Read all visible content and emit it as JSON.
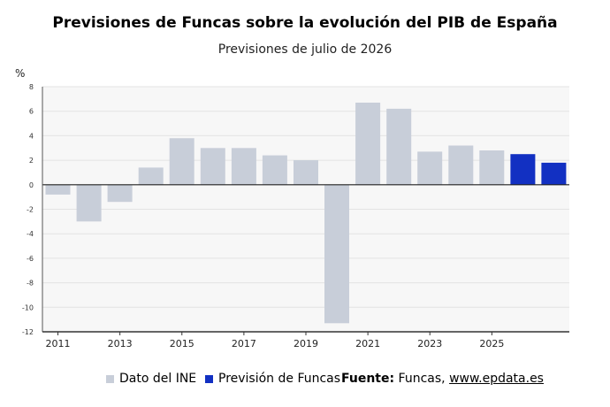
{
  "title": "Previsiones de Funcas sobre la evolución del PIB de España",
  "subtitle": "Previsiones de julio de 2026",
  "unit_label": "%",
  "legend": {
    "ine_label": "Dato del INE",
    "funcas_label": "Previsión de Funcas"
  },
  "source": {
    "prefix": "Fuente:",
    "text": " Funcas, ",
    "url": "www.epdata.es"
  },
  "colors": {
    "ine": "#c8ced9",
    "funcas": "#1230c2",
    "plot_bg": "#f7f7f7",
    "grid": "#e3e3e3"
  },
  "chart_data": {
    "type": "bar",
    "title": "Previsiones de Funcas sobre la evolución del PIB de España",
    "subtitle": "Previsiones de julio de 2026",
    "ylabel": "%",
    "ylim": [
      -12,
      8
    ],
    "yticks": [
      8,
      6,
      4,
      2,
      0,
      -2,
      -4,
      -6,
      -8,
      -10,
      -12
    ],
    "xtick_labels": [
      "2011",
      "2013",
      "2015",
      "2017",
      "2019",
      "2021",
      "2023",
      "2025"
    ],
    "categories": [
      "2011",
      "2012",
      "2013",
      "2014",
      "2015",
      "2016",
      "2017",
      "2018",
      "2019",
      "2020",
      "2021",
      "2022",
      "2023",
      "2024",
      "2025",
      "2026",
      "2027"
    ],
    "series": [
      {
        "name": "Dato del INE",
        "values": [
          -0.8,
          -3.0,
          -1.4,
          1.4,
          3.8,
          3.0,
          3.0,
          2.4,
          2.0,
          -11.3,
          6.7,
          6.2,
          2.7,
          3.2,
          2.8,
          null,
          null
        ]
      },
      {
        "name": "Previsión de Funcas",
        "values": [
          null,
          null,
          null,
          null,
          null,
          null,
          null,
          null,
          null,
          null,
          null,
          null,
          null,
          null,
          null,
          2.5,
          1.8
        ]
      }
    ],
    "grid": true,
    "legend_position": "bottom"
  }
}
